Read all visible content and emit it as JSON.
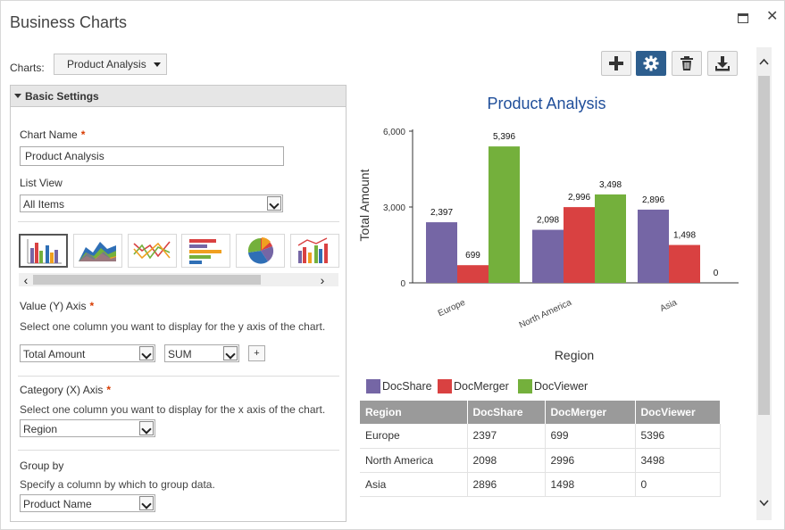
{
  "window": {
    "title": "Business Charts"
  },
  "charts": {
    "label": "Charts:",
    "selected": "Product Analysis"
  },
  "toolbar": {
    "buttons": [
      "plus-icon",
      "gear-icon",
      "trash-icon",
      "download-icon"
    ]
  },
  "basic_settings": {
    "header": "Basic Settings",
    "chart_name_label": "Chart Name",
    "chart_name_value": "Product Analysis",
    "list_view_label": "List View",
    "list_view_value": "All Items",
    "value_axis_label": "Value (Y) Axis",
    "value_axis_hint": "Select one column you want to display for the y axis of the chart.",
    "value_column": "Total Amount",
    "value_aggregate": "SUM",
    "plus_label": "+",
    "category_axis_label": "Category (X) Axis",
    "category_axis_hint": "Select one column you want to display for the x axis of the chart.",
    "category_column": "Region",
    "group_by_label": "Group by",
    "group_by_hint": "Specify a column by which to group data.",
    "group_by_column": "Product Name",
    "required_mark": "*"
  },
  "chart_types": [
    "column-chart-icon",
    "area-chart-icon",
    "line-chart-icon",
    "bar-chart-icon",
    "pie-chart-icon",
    "combo-chart-icon"
  ],
  "chart_data": {
    "type": "bar",
    "title": "Product Analysis",
    "xlabel": "Region",
    "ylabel": "Total Amount",
    "categories": [
      "Europe",
      "North America",
      "Asia"
    ],
    "series": [
      {
        "name": "DocShare",
        "color": "#7566a5",
        "values": [
          2397,
          2098,
          2896
        ]
      },
      {
        "name": "DocMerger",
        "color": "#d94141",
        "values": [
          699,
          2996,
          1498
        ]
      },
      {
        "name": "DocViewer",
        "color": "#74b03c",
        "values": [
          5396,
          3498,
          0
        ]
      }
    ],
    "ylim": [
      0,
      6000
    ],
    "yticks": [
      "0",
      "3,000",
      "6,000"
    ],
    "data_labels": [
      [
        "2,397",
        "2,098",
        "2,896"
      ],
      [
        "699",
        "2,996",
        "1,498"
      ],
      [
        "5,396",
        "3,498",
        "0"
      ]
    ],
    "legend_position": "bottom-left"
  },
  "table": {
    "headers": [
      "Region",
      "DocShare",
      "DocMerger",
      "DocViewer"
    ],
    "rows": [
      [
        "Europe",
        "2397",
        "699",
        "5396"
      ],
      [
        "North America",
        "2098",
        "2996",
        "3498"
      ],
      [
        "Asia",
        "2896",
        "1498",
        "0"
      ]
    ]
  }
}
